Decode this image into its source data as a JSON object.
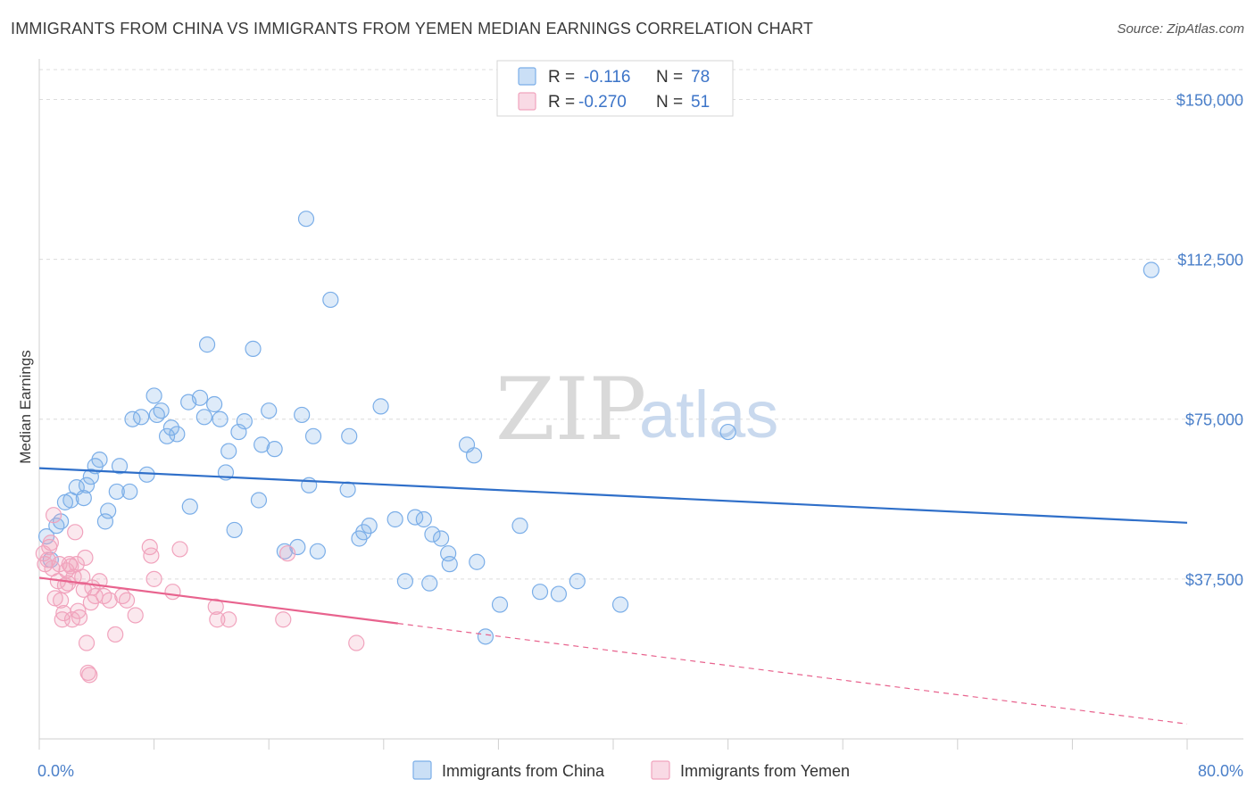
{
  "header": {
    "title": "IMMIGRANTS FROM CHINA VS IMMIGRANTS FROM YEMEN MEDIAN EARNINGS CORRELATION CHART",
    "source": "Source: ZipAtlas.com"
  },
  "watermark": {
    "zip": "ZIP",
    "atlas": "atlas"
  },
  "legend": {
    "rows": [
      {
        "r_label": "R =",
        "r_value": "-0.116",
        "n_label": "N =",
        "n_value": "78",
        "color": "#7baee8"
      },
      {
        "r_label": "R =",
        "r_value": "-0.270",
        "n_label": "N =",
        "n_value": "51",
        "color": "#f1a3bd"
      }
    ]
  },
  "bottom_legend": {
    "items": [
      {
        "label": "Immigrants from China",
        "color": "#7baee8"
      },
      {
        "label": "Immigrants from Yemen",
        "color": "#f1a3bd"
      }
    ]
  },
  "chart_data": {
    "type": "scatter",
    "title": "IMMIGRANTS FROM CHINA VS IMMIGRANTS FROM YEMEN MEDIAN EARNINGS CORRELATION CHART",
    "ylabel": "Median Earnings",
    "xlim": [
      0,
      80
    ],
    "ylim": [
      0,
      157000
    ],
    "x_tick_labels": [
      "0.0%",
      "80.0%"
    ],
    "y_ticks": [
      {
        "value": 37500,
        "label": "$37,500"
      },
      {
        "value": 75000,
        "label": "$75,000"
      },
      {
        "value": 112500,
        "label": "$112,500"
      },
      {
        "value": 150000,
        "label": "$150,000"
      }
    ],
    "grid": "horizontal-dashed",
    "legend_position": "top-center",
    "series": [
      {
        "name": "Immigrants from China",
        "color": "#7baee8",
        "line_color": "#2f6fc9",
        "trend": {
          "x": [
            0,
            80
          ],
          "y": [
            63500,
            50700
          ],
          "dashed_from": null
        },
        "points": [
          [
            0.5,
            47500
          ],
          [
            0.8,
            42000
          ],
          [
            1.2,
            50000
          ],
          [
            1.5,
            51000
          ],
          [
            1.8,
            55500
          ],
          [
            2.2,
            56000
          ],
          [
            2.6,
            59000
          ],
          [
            3.1,
            56500
          ],
          [
            3.3,
            59500
          ],
          [
            3.6,
            61500
          ],
          [
            3.9,
            64000
          ],
          [
            4.2,
            65500
          ],
          [
            4.6,
            51000
          ],
          [
            4.8,
            53500
          ],
          [
            5.4,
            58000
          ],
          [
            5.6,
            64000
          ],
          [
            6.3,
            58000
          ],
          [
            6.5,
            75000
          ],
          [
            7.1,
            75500
          ],
          [
            7.5,
            62000
          ],
          [
            8.0,
            80500
          ],
          [
            8.2,
            76000
          ],
          [
            8.5,
            77000
          ],
          [
            8.9,
            71000
          ],
          [
            9.2,
            73000
          ],
          [
            9.6,
            71500
          ],
          [
            10.4,
            79000
          ],
          [
            10.5,
            54500
          ],
          [
            11.2,
            80000
          ],
          [
            11.5,
            75500
          ],
          [
            11.7,
            92500
          ],
          [
            12.2,
            78500
          ],
          [
            12.6,
            75000
          ],
          [
            13.0,
            62500
          ],
          [
            13.2,
            67500
          ],
          [
            13.6,
            49000
          ],
          [
            13.9,
            72000
          ],
          [
            14.3,
            74500
          ],
          [
            14.9,
            91500
          ],
          [
            15.3,
            56000
          ],
          [
            15.5,
            69000
          ],
          [
            16.0,
            77000
          ],
          [
            16.4,
            68000
          ],
          [
            17.1,
            44000
          ],
          [
            18.0,
            45000
          ],
          [
            18.3,
            76000
          ],
          [
            18.6,
            122000
          ],
          [
            18.8,
            59500
          ],
          [
            19.1,
            71000
          ],
          [
            19.4,
            44000
          ],
          [
            20.3,
            103000
          ],
          [
            21.5,
            58500
          ],
          [
            21.6,
            71000
          ],
          [
            22.3,
            47000
          ],
          [
            22.6,
            48500
          ],
          [
            23.0,
            50000
          ],
          [
            23.8,
            78000
          ],
          [
            24.8,
            51500
          ],
          [
            25.5,
            37000
          ],
          [
            26.2,
            52000
          ],
          [
            26.8,
            51500
          ],
          [
            27.2,
            36500
          ],
          [
            27.4,
            48000
          ],
          [
            28.0,
            47000
          ],
          [
            28.5,
            43500
          ],
          [
            28.6,
            41000
          ],
          [
            29.8,
            69000
          ],
          [
            30.3,
            66500
          ],
          [
            30.5,
            41500
          ],
          [
            31.1,
            24000
          ],
          [
            32.1,
            31500
          ],
          [
            33.5,
            50000
          ],
          [
            34.9,
            34500
          ],
          [
            36.2,
            34000
          ],
          [
            37.5,
            37000
          ],
          [
            40.5,
            31500
          ],
          [
            48.0,
            72000
          ],
          [
            77.5,
            110000
          ]
        ]
      },
      {
        "name": "Immigrants from Yemen",
        "color": "#f1a3bd",
        "line_color": "#e8638e",
        "trend": {
          "x": [
            0,
            80
          ],
          "y": [
            37800,
            3500
          ],
          "dashed_from": 25
        },
        "points": [
          [
            0.3,
            43500
          ],
          [
            0.4,
            41000
          ],
          [
            0.6,
            42000
          ],
          [
            0.7,
            45000
          ],
          [
            0.8,
            46000
          ],
          [
            0.9,
            40000
          ],
          [
            1.0,
            52500
          ],
          [
            1.1,
            33000
          ],
          [
            1.3,
            37000
          ],
          [
            1.4,
            41000
          ],
          [
            1.5,
            32500
          ],
          [
            1.6,
            28000
          ],
          [
            1.7,
            29500
          ],
          [
            1.8,
            36000
          ],
          [
            1.9,
            39500
          ],
          [
            2.0,
            36500
          ],
          [
            2.1,
            41000
          ],
          [
            2.2,
            40500
          ],
          [
            2.3,
            28000
          ],
          [
            2.4,
            38000
          ],
          [
            2.5,
            48500
          ],
          [
            2.6,
            41000
          ],
          [
            2.7,
            30000
          ],
          [
            2.8,
            28500
          ],
          [
            3.0,
            38000
          ],
          [
            3.1,
            35000
          ],
          [
            3.2,
            42500
          ],
          [
            3.3,
            22500
          ],
          [
            3.4,
            15500
          ],
          [
            3.5,
            15000
          ],
          [
            3.6,
            32000
          ],
          [
            3.7,
            35500
          ],
          [
            3.9,
            33500
          ],
          [
            4.2,
            37000
          ],
          [
            4.5,
            33500
          ],
          [
            4.9,
            32500
          ],
          [
            5.3,
            24500
          ],
          [
            5.8,
            33500
          ],
          [
            6.1,
            32500
          ],
          [
            6.7,
            29000
          ],
          [
            7.7,
            45000
          ],
          [
            7.8,
            43000
          ],
          [
            8.0,
            37500
          ],
          [
            9.3,
            34500
          ],
          [
            9.8,
            44500
          ],
          [
            12.3,
            31000
          ],
          [
            12.4,
            28000
          ],
          [
            13.2,
            28000
          ],
          [
            17.0,
            28000
          ],
          [
            17.3,
            43500
          ],
          [
            22.1,
            22500
          ]
        ]
      }
    ]
  }
}
